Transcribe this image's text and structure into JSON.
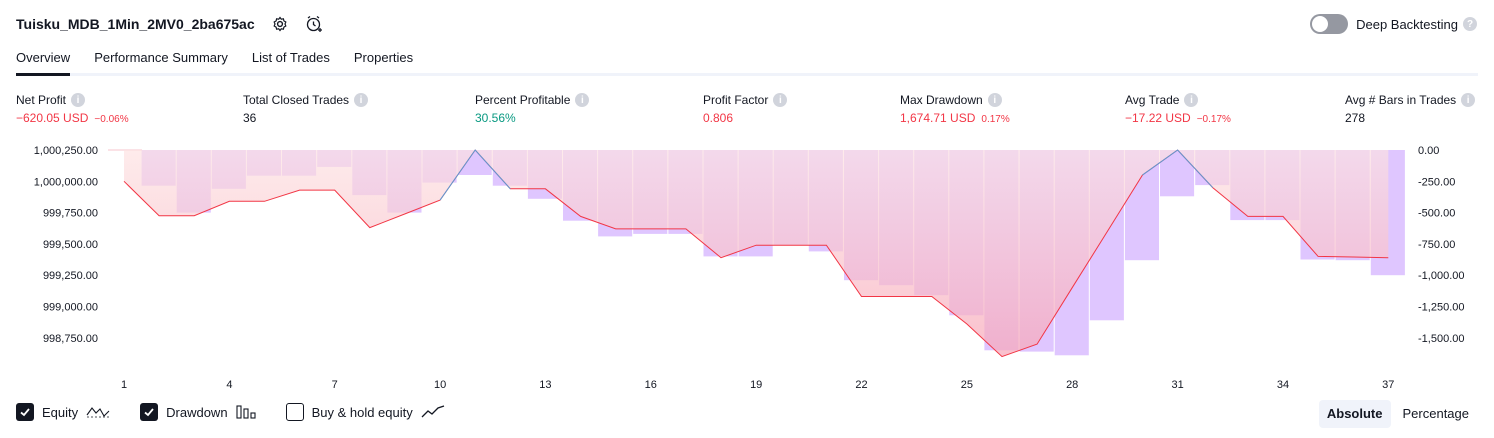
{
  "header": {
    "title": "Tuisku_MDB_1Min_2MV0_2ba675ac",
    "settings_icon": "gear-icon",
    "alert_icon": "alarm-clock-plus-icon",
    "deep_backtesting_label": "Deep Backtesting",
    "deep_backtesting_on": false
  },
  "tabs": [
    {
      "label": "Overview",
      "active": true
    },
    {
      "label": "Performance Summary",
      "active": false
    },
    {
      "label": "List of Trades",
      "active": false
    },
    {
      "label": "Properties",
      "active": false
    }
  ],
  "metrics": [
    {
      "label": "Net Profit",
      "value": "−620.05 USD",
      "pct": "−0.06%",
      "tone": "neg"
    },
    {
      "label": "Total Closed Trades",
      "value": "36",
      "pct": "",
      "tone": "neutral"
    },
    {
      "label": "Percent Profitable",
      "value": "30.56%",
      "pct": "",
      "tone": "pos"
    },
    {
      "label": "Profit Factor",
      "value": "0.806",
      "pct": "",
      "tone": "neg"
    },
    {
      "label": "Max Drawdown",
      "value": "1,674.71 USD",
      "pct": "0.17%",
      "tone": "neg"
    },
    {
      "label": "Avg Trade",
      "value": "−17.22 USD",
      "pct": "−0.17%",
      "tone": "neg"
    },
    {
      "label": "Avg # Bars in Trades",
      "value": "278",
      "pct": "",
      "tone": "neutral"
    }
  ],
  "colors": {
    "equity_line": "#f23645",
    "drawdown_bar": "#d9bcff",
    "equity_fill_neg": "#f7a6b8",
    "equity_fill_pos": "#c8e6d9",
    "positive": "#089981",
    "negative": "#f23645"
  },
  "chart_data": {
    "type": "line",
    "left_axis": {
      "ticks": [
        "1,000,250.00",
        "1,000,000.00",
        "999,750.00",
        "999,500.00",
        "999,250.00",
        "999,000.00",
        "998,750.00"
      ],
      "tick_values": [
        1000250,
        1000000,
        999750,
        999500,
        999250,
        999000,
        998750
      ],
      "baseline": 1000250
    },
    "right_axis": {
      "ticks": [
        "0.00",
        "-250.00",
        "-500.00",
        "-750.00",
        "-1,000.00",
        "-1,250.00",
        "-1,500.00"
      ],
      "tick_values": [
        0,
        -250,
        -500,
        -750,
        -1000,
        -1250,
        -1500
      ]
    },
    "x_ticks": [
      "1",
      "4",
      "7",
      "10",
      "13",
      "16",
      "19",
      "22",
      "25",
      "28",
      "31",
      "34",
      "37"
    ],
    "series": [
      {
        "name": "Equity",
        "x": [
          1,
          2,
          3,
          4,
          5,
          6,
          7,
          8,
          9,
          10,
          11,
          12,
          13,
          14,
          15,
          16,
          17,
          18,
          19,
          20,
          21,
          22,
          23,
          24,
          25,
          26,
          27,
          28,
          29,
          30,
          31,
          32,
          33,
          34,
          35,
          36,
          37
        ],
        "values": [
          1000000,
          999725,
          999725,
          999840,
          999840,
          999930,
          999930,
          999630,
          999740,
          999850,
          1000250,
          999940,
          999940,
          999720,
          999620,
          999620,
          999620,
          999390,
          999490,
          999490,
          999490,
          999080,
          999080,
          999080,
          998860,
          998600,
          998700,
          999150,
          999600,
          1000050,
          1000250,
          999950,
          999720,
          999720,
          999400,
          999395,
          999390
        ]
      },
      {
        "name": "Drawdown",
        "x": [
          2,
          3,
          4,
          5,
          6,
          7,
          8,
          9,
          10,
          11,
          12,
          13,
          14,
          15,
          16,
          17,
          18,
          19,
          20,
          21,
          22,
          23,
          24,
          25,
          26,
          27,
          28,
          29,
          30,
          31,
          32,
          33,
          34,
          35,
          36,
          37
        ],
        "values": [
          -285,
          -500,
          -310,
          -205,
          -205,
          -135,
          -360,
          -500,
          -260,
          -200,
          -285,
          -390,
          -565,
          -690,
          -670,
          -670,
          -850,
          -850,
          -760,
          -810,
          -1040,
          -1080,
          -1160,
          -1320,
          -1600,
          -1610,
          -1640,
          -1360,
          -880,
          -370,
          -280,
          -560,
          -560,
          -875,
          -880,
          -1000
        ]
      }
    ],
    "grid": false
  },
  "legend": [
    {
      "label": "Equity",
      "checked": true,
      "icon": "equity-line-icon"
    },
    {
      "label": "Drawdown",
      "checked": true,
      "icon": "drawdown-bars-icon"
    },
    {
      "label": "Buy & hold equity",
      "checked": false,
      "icon": "buy-hold-line-icon"
    }
  ],
  "mode": {
    "absolute_label": "Absolute",
    "percentage_label": "Percentage",
    "active": "Absolute"
  }
}
